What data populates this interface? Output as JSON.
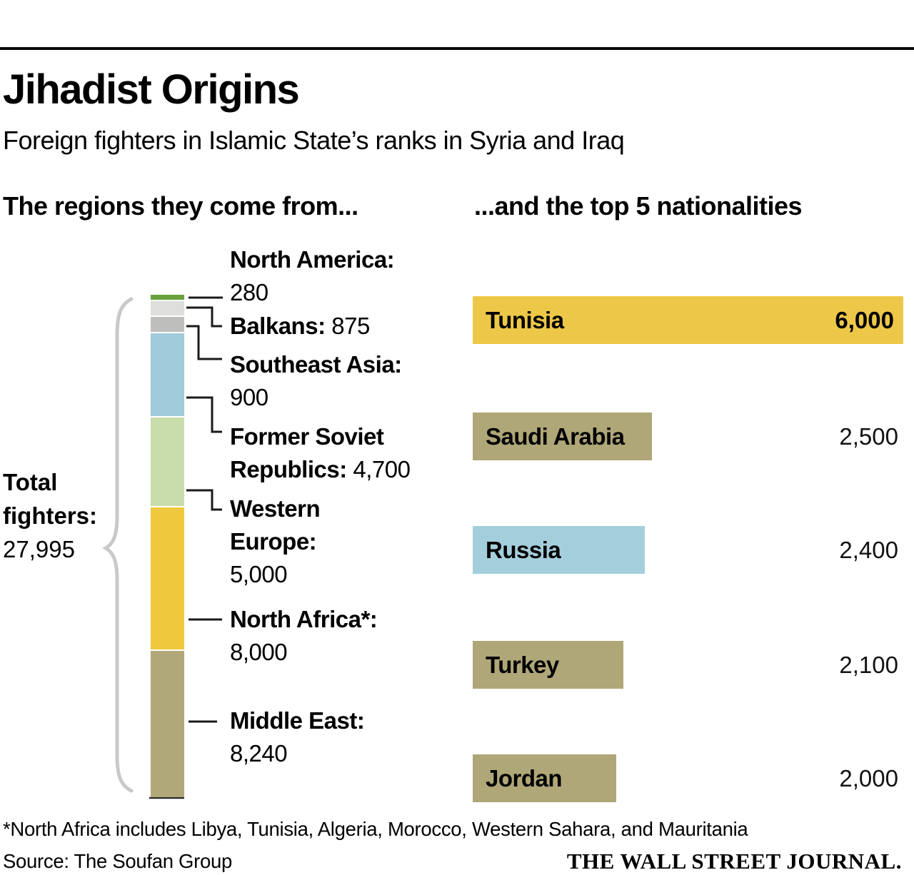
{
  "header": {
    "title": "Jihadist Origins",
    "subtitle": "Foreign fighters in Islamic State’s ranks in Syria and Iraq"
  },
  "left_panel_heading": "The regions they come from...",
  "right_panel_heading": "...and the top 5 nationalities",
  "total": {
    "label_line1": "Total",
    "label_line2": "fighters:",
    "value_display": "27,995",
    "value": 27995
  },
  "footer": {
    "footnote": "*North Africa includes Libya, Tunisia, Algeria, Morocco, Western Sahara, and Mauritania",
    "source": "Source: The Soufan Group",
    "logo": "THE WALL STREET JOURNAL."
  },
  "colors": {
    "rule": "#0a0a0a",
    "connector": "#1a1a1a",
    "brace": "#c9c9c9",
    "baseline": "#2a2a2a"
  },
  "chart_data": [
    {
      "type": "bar",
      "subtype": "stacked-vertical",
      "title": "The regions they come from...",
      "total": 27995,
      "regions": [
        {
          "name": "North America:",
          "value": 280,
          "display": "280",
          "color": "#69a23d"
        },
        {
          "name": "Balkans:",
          "value": 875,
          "display": "875",
          "color": "#dededc"
        },
        {
          "name": "Southeast Asia:",
          "value": 900,
          "display": "900",
          "color": "#bebebc"
        },
        {
          "name": "Former Soviet Republics:",
          "value": 4700,
          "display": "4,700",
          "color": "#a1cadb"
        },
        {
          "name": "Western Europe:",
          "value": 5000,
          "display": "5,000",
          "color": "#c9dcab"
        },
        {
          "name": "North Africa*:",
          "value": 8000,
          "display": "8,000",
          "color": "#efc83e"
        },
        {
          "name": "Middle East:",
          "value": 8240,
          "display": "8,240",
          "color": "#b0a878"
        }
      ]
    },
    {
      "type": "bar",
      "subtype": "horizontal",
      "title": "...and the top 5 nationalities",
      "xlim": [
        0,
        6000
      ],
      "bars": [
        {
          "label": "Tunisia",
          "value": 6000,
          "display": "6,000",
          "color": "#edc848"
        },
        {
          "label": "Saudi Arabia",
          "value": 2500,
          "display": "2,500",
          "color": "#b0a778"
        },
        {
          "label": "Russia",
          "value": 2400,
          "display": "2,400",
          "color": "#a5cedd"
        },
        {
          "label": "Turkey",
          "value": 2100,
          "display": "2,100",
          "color": "#b0a778"
        },
        {
          "label": "Jordan",
          "value": 2000,
          "display": "2,000",
          "color": "#b0a778"
        }
      ]
    }
  ]
}
